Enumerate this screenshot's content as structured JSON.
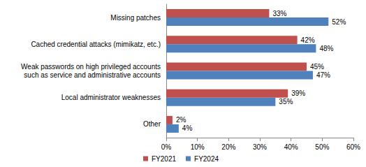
{
  "chart_data": {
    "type": "bar",
    "orientation": "horizontal",
    "categories": [
      "Missing patches",
      "Cached credential attacks (mimikatz, etc.)",
      "Weak passwords on high privileged accounts\nsuch as service and administrative accounts",
      "Local administrator weaknesses",
      "Other"
    ],
    "series": [
      {
        "name": "FY2021",
        "color": "#c0504d",
        "values": [
          33,
          42,
          45,
          39,
          2
        ],
        "value_labels": [
          "33%",
          "42%",
          "45%",
          "39%",
          "2%"
        ]
      },
      {
        "name": "FY2024",
        "color": "#4f81bd",
        "values": [
          52,
          48,
          47,
          35,
          4
        ],
        "value_labels": [
          "52%",
          "48%",
          "47%",
          "35%",
          "4%"
        ]
      }
    ],
    "xlim": [
      0,
      60
    ],
    "xticks": [
      {
        "value": 0,
        "label": "0%"
      },
      {
        "value": 10,
        "label": "10%"
      },
      {
        "value": 20,
        "label": "20%"
      },
      {
        "value": 30,
        "label": "30%"
      },
      {
        "value": 40,
        "label": "40%"
      },
      {
        "value": 50,
        "label": "50%"
      },
      {
        "value": 60,
        "label": "60%"
      }
    ],
    "data_labels": true,
    "grid": false,
    "legend": "bottom"
  }
}
